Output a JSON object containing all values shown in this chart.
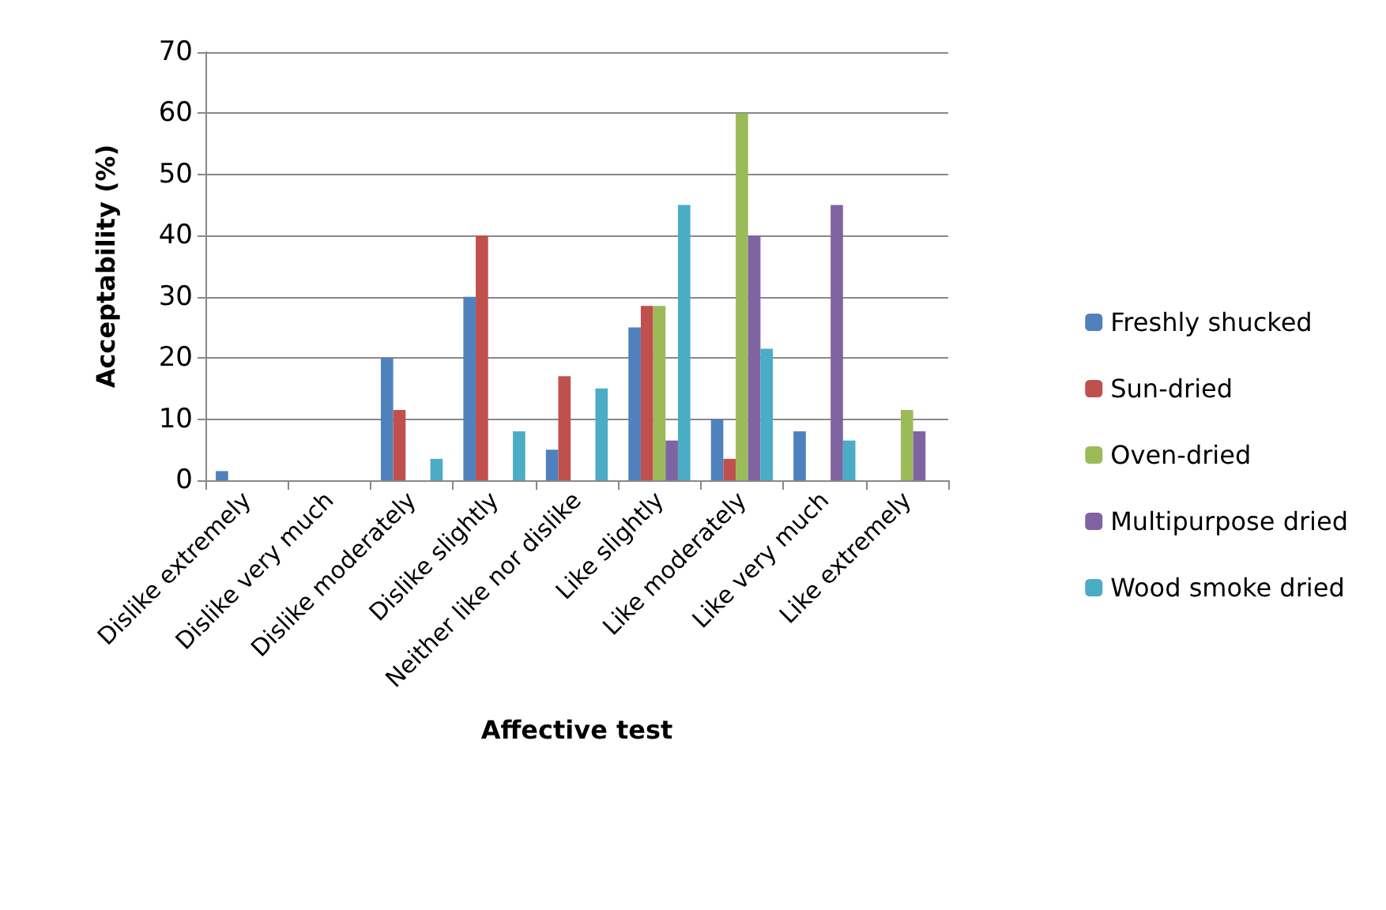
{
  "chart_data": {
    "type": "bar",
    "xlabel": "Affective test",
    "ylabel": "Acceptability (%)",
    "categories": [
      "Dislike extremely",
      "Dislike very much",
      "Dislike moderately",
      "Dislike slightly",
      "Neither like nor dislike",
      "Like slightly",
      "Like moderately",
      "Like very much",
      "Like extremely"
    ],
    "series": [
      {
        "name": "Freshly shucked",
        "color": "#4f81bd",
        "values": [
          1.5,
          null,
          20,
          30,
          5,
          25,
          10,
          8,
          null
        ]
      },
      {
        "name": "Sun-dried",
        "color": "#c0504d",
        "values": [
          null,
          null,
          11.5,
          40,
          17,
          28.5,
          3.5,
          null,
          null
        ]
      },
      {
        "name": "Oven-dried",
        "color": "#9bbb59",
        "values": [
          null,
          null,
          null,
          null,
          null,
          28.5,
          60,
          null,
          11.5
        ]
      },
      {
        "name": "Multipurpose dried",
        "color": "#8064a2",
        "values": [
          null,
          null,
          null,
          null,
          null,
          6.5,
          40,
          45,
          8
        ]
      },
      {
        "name": "Wood smoke dried",
        "color": "#4bacc6",
        "values": [
          null,
          null,
          3.5,
          8,
          15,
          45,
          21.5,
          6.5,
          null
        ]
      }
    ],
    "ylim": [
      0,
      70
    ],
    "yticks": [
      0,
      10,
      20,
      30,
      40,
      50,
      60,
      70
    ],
    "grid": "y",
    "legend": "right"
  }
}
